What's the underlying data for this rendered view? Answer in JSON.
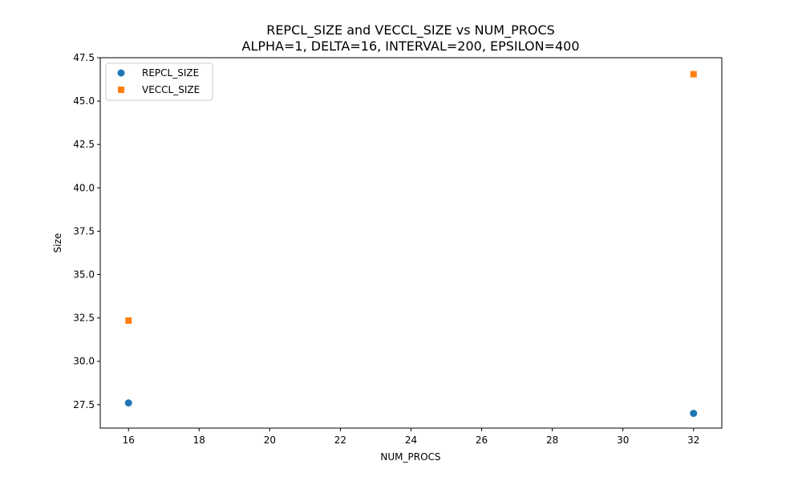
{
  "chart_data": {
    "type": "scatter",
    "title": "REPCL_SIZE and VECCL_SIZE vs NUM_PROCS",
    "subtitle": "ALPHA=1, DELTA=16, INTERVAL=200, EPSILON=400",
    "xlabel": "NUM_PROCS",
    "ylabel": "Size",
    "xlim": [
      15.2,
      32.8
    ],
    "ylim": [
      26.15,
      47.5
    ],
    "xticks": [
      16,
      18,
      20,
      22,
      24,
      26,
      28,
      30,
      32
    ],
    "yticks": [
      27.5,
      30.0,
      32.5,
      35.0,
      37.5,
      40.0,
      42.5,
      45.0,
      47.5
    ],
    "grid": false,
    "legend_position": "top-left",
    "series": [
      {
        "name": "REPCL_SIZE",
        "marker": "circle",
        "color": "#1f77b4",
        "x": [
          16,
          32
        ],
        "y": [
          27.6,
          27.0
        ]
      },
      {
        "name": "VECCL_SIZE",
        "marker": "square",
        "color": "#ff7f0e",
        "x": [
          16,
          32
        ],
        "y": [
          32.35,
          46.55
        ]
      }
    ]
  }
}
